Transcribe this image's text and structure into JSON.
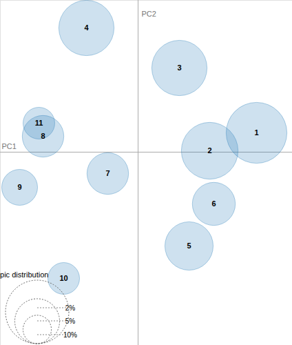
{
  "chart_data": {
    "type": "scatter",
    "x_label": "PC1",
    "y_label": "PC2",
    "xlim": [
      -0.2,
      0.224
    ],
    "ylim": [
      -0.28,
      0.22
    ],
    "xticks": [],
    "yticks": [],
    "tick_labels": false,
    "color": "#1f77b4",
    "points": {
      "labels": [
        1,
        2,
        3,
        4,
        5,
        6,
        7,
        8,
        9,
        10,
        11
      ],
      "x": [
        0.172,
        0.104,
        0.06,
        -0.075,
        0.074,
        0.11,
        -0.044,
        -0.138,
        -0.172,
        -0.108,
        -0.144
      ],
      "y": [
        0.028,
        0.002,
        0.122,
        0.18,
        -0.136,
        -0.075,
        -0.031,
        0.023,
        -0.051,
        -0.183,
        0.042
      ],
      "size": [
        9.2,
        8.0,
        7.6,
        7.6,
        5.8,
        4.6,
        4.3,
        4.3,
        3.2,
        2.5,
        2.5
      ]
    },
    "size_legend": {
      "title": "Marginal topic distribution",
      "ticks": [
        {
          "value": 2,
          "label": "2%"
        },
        {
          "value": 5,
          "label": "5%"
        },
        {
          "value": 10,
          "label": "10%"
        }
      ]
    }
  }
}
